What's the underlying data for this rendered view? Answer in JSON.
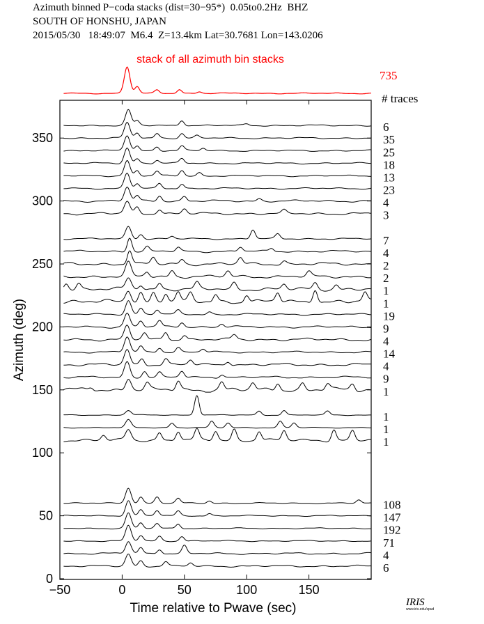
{
  "header": {
    "line1": "Azimuth binned P−coda stacks (dist=30−95*)  0.05to0.2Hz  BHZ",
    "line2": "SOUTH OF HONSHU, JAPAN",
    "line3": "2015/05/30   18:49:07  M6.4  Z=13.4km Lat=30.7681 Lon=143.0206"
  },
  "logo": {
    "text": "IRIS",
    "subtext": "www.iris.edu/spud"
  },
  "colors": {
    "stack": "#ff0000",
    "trace": "#000000"
  },
  "chart_data": {
    "type": "line",
    "stack_label": "stack of all azimuth bin stacks",
    "stack_count": "735",
    "count_header": "# traces",
    "xlabel": "Time relative to Pwave (sec)",
    "ylabel": "Azimuth (deg)",
    "xlim": [
      -50,
      200
    ],
    "ylim": [
      0,
      380
    ],
    "xticks": [
      -50,
      0,
      50,
      100,
      150
    ],
    "yticks": [
      0,
      50,
      100,
      150,
      200,
      250,
      300,
      350
    ],
    "traces": [
      {
        "azimuth": 360,
        "count": "6",
        "peaks": [
          [
            5,
            1.0
          ],
          [
            12,
            0.3
          ],
          [
            48,
            0.35
          ],
          [
            100,
            0.1
          ]
        ],
        "noise": 0.05
      },
      {
        "azimuth": 350,
        "count": "35",
        "peaks": [
          [
            4,
            1.0
          ],
          [
            12,
            0.35
          ],
          [
            28,
            0.3
          ],
          [
            48,
            0.3
          ],
          [
            60,
            0.15
          ]
        ],
        "noise": 0.05
      },
      {
        "azimuth": 340,
        "count": "25",
        "peaks": [
          [
            4,
            1.0
          ],
          [
            12,
            0.3
          ],
          [
            28,
            0.25
          ],
          [
            48,
            0.3
          ],
          [
            65,
            0.15
          ]
        ],
        "noise": 0.05
      },
      {
        "azimuth": 330,
        "count": "18",
        "peaks": [
          [
            4,
            1.0
          ],
          [
            12,
            0.3
          ],
          [
            28,
            0.2
          ],
          [
            48,
            0.3
          ]
        ],
        "noise": 0.05
      },
      {
        "azimuth": 320,
        "count": "13",
        "peaks": [
          [
            4,
            1.0
          ],
          [
            12,
            0.35
          ],
          [
            28,
            0.3
          ],
          [
            48,
            0.35
          ],
          [
            62,
            0.2
          ]
        ],
        "noise": 0.05
      },
      {
        "azimuth": 310,
        "count": "23",
        "peaks": [
          [
            4,
            1.0
          ],
          [
            12,
            0.3
          ],
          [
            30,
            0.3
          ],
          [
            48,
            0.3
          ]
        ],
        "noise": 0.05
      },
      {
        "azimuth": 300,
        "count": "4",
        "peaks": [
          [
            4,
            0.9
          ],
          [
            12,
            0.35
          ],
          [
            30,
            0.35
          ],
          [
            50,
            0.3
          ],
          [
            110,
            0.15
          ]
        ],
        "noise": 0.07
      },
      {
        "azimuth": 290,
        "count": "3",
        "peaks": [
          [
            4,
            0.8
          ],
          [
            12,
            0.4
          ],
          [
            30,
            0.3
          ],
          [
            50,
            0.3
          ],
          [
            130,
            0.2
          ]
        ],
        "noise": 0.08
      },
      {
        "azimuth": 270,
        "count": "7",
        "peaks": [
          [
            5,
            0.8
          ],
          [
            15,
            0.3
          ],
          [
            40,
            0.15
          ],
          [
            105,
            0.6
          ],
          [
            125,
            0.3
          ]
        ],
        "noise": 0.05
      },
      {
        "azimuth": 260,
        "count": "4",
        "peaks": [
          [
            6,
            0.9
          ],
          [
            20,
            0.3
          ],
          [
            45,
            0.25
          ],
          [
            95,
            0.3
          ],
          [
            120,
            0.2
          ]
        ],
        "noise": 0.07
      },
      {
        "azimuth": 250,
        "count": "2",
        "peaks": [
          [
            6,
            0.9
          ],
          [
            25,
            0.4
          ],
          [
            48,
            0.3
          ],
          [
            95,
            0.4
          ],
          [
            130,
            0.2
          ]
        ],
        "noise": 0.1
      },
      {
        "azimuth": 240,
        "count": "2",
        "peaks": [
          [
            5,
            0.9
          ],
          [
            20,
            0.3
          ],
          [
            40,
            0.4
          ],
          [
            85,
            0.35
          ],
          [
            150,
            0.3
          ]
        ],
        "noise": 0.1
      },
      {
        "azimuth": 230,
        "count": "1",
        "peaks": [
          [
            -45,
            0.4
          ],
          [
            -35,
            0.4
          ],
          [
            5,
            0.7
          ],
          [
            15,
            0.3
          ],
          [
            30,
            0.4
          ],
          [
            60,
            0.4
          ],
          [
            90,
            0.4
          ],
          [
            130,
            0.3
          ],
          [
            155,
            0.4
          ],
          [
            172,
            0.3
          ]
        ],
        "noise": 0.12
      },
      {
        "azimuth": 220,
        "count": "1",
        "peaks": [
          [
            5,
            0.8
          ],
          [
            15,
            0.6
          ],
          [
            25,
            0.6
          ],
          [
            35,
            0.6
          ],
          [
            45,
            0.6
          ],
          [
            55,
            0.5
          ],
          [
            75,
            0.5
          ],
          [
            100,
            0.5
          ],
          [
            125,
            0.6
          ],
          [
            155,
            0.9
          ],
          [
            195,
            0.6
          ]
        ],
        "noise": 0.15
      },
      {
        "azimuth": 210,
        "count": "19",
        "peaks": [
          [
            5,
            0.9
          ],
          [
            15,
            0.4
          ],
          [
            28,
            0.3
          ],
          [
            45,
            0.25
          ],
          [
            70,
            0.15
          ]
        ],
        "noise": 0.06
      },
      {
        "azimuth": 200,
        "count": "9",
        "peaks": [
          [
            4,
            0.9
          ],
          [
            15,
            0.4
          ],
          [
            30,
            0.4
          ],
          [
            48,
            0.3
          ],
          [
            80,
            0.2
          ]
        ],
        "noise": 0.07
      },
      {
        "azimuth": 190,
        "count": "4",
        "peaks": [
          [
            4,
            0.9
          ],
          [
            18,
            0.4
          ],
          [
            35,
            0.5
          ],
          [
            50,
            0.3
          ],
          [
            90,
            0.3
          ]
        ],
        "noise": 0.09
      },
      {
        "azimuth": 180,
        "count": "14",
        "peaks": [
          [
            4,
            1.0
          ],
          [
            15,
            0.4
          ],
          [
            30,
            0.3
          ],
          [
            45,
            0.3
          ],
          [
            65,
            0.2
          ]
        ],
        "noise": 0.06
      },
      {
        "azimuth": 170,
        "count": "4",
        "peaks": [
          [
            4,
            1.0
          ],
          [
            16,
            0.4
          ],
          [
            35,
            0.4
          ],
          [
            55,
            0.3
          ],
          [
            85,
            0.25
          ]
        ],
        "noise": 0.09
      },
      {
        "azimuth": 160,
        "count": "9",
        "peaks": [
          [
            4,
            1.0
          ],
          [
            18,
            0.4
          ],
          [
            30,
            0.3
          ],
          [
            48,
            0.4
          ],
          [
            80,
            0.2
          ]
        ],
        "noise": 0.07
      },
      {
        "azimuth": 150,
        "count": "1",
        "peaks": [
          [
            -25,
            0.2
          ],
          [
            5,
            0.8
          ],
          [
            20,
            0.4
          ],
          [
            45,
            0.6
          ],
          [
            80,
            0.5
          ],
          [
            105,
            0.4
          ],
          [
            125,
            0.5
          ],
          [
            145,
            0.4
          ],
          [
            165,
            0.4
          ],
          [
            185,
            0.4
          ]
        ],
        "noise": 0.15
      },
      {
        "azimuth": 130,
        "count": "1",
        "peaks": [
          [
            5,
            0.3
          ],
          [
            60,
            1.3
          ],
          [
            110,
            0.25
          ],
          [
            130,
            0.3
          ],
          [
            165,
            0.25
          ]
        ],
        "noise": 0.03
      },
      {
        "azimuth": 120,
        "count": "1",
        "peaks": [
          [
            5,
            0.5
          ],
          [
            40,
            0.3
          ],
          [
            72,
            0.4
          ],
          [
            85,
            0.3
          ],
          [
            127,
            0.4
          ],
          [
            138,
            0.3
          ]
        ],
        "noise": 0.03
      },
      {
        "azimuth": 110,
        "count": "1",
        "peaks": [
          [
            -15,
            0.3
          ],
          [
            5,
            0.7
          ],
          [
            30,
            0.5
          ],
          [
            45,
            0.6
          ],
          [
            60,
            0.7
          ],
          [
            75,
            0.6
          ],
          [
            90,
            0.7
          ],
          [
            110,
            0.6
          ],
          [
            130,
            0.6
          ],
          [
            170,
            0.7
          ],
          [
            185,
            0.6
          ]
        ],
        "noise": 0.1
      },
      {
        "azimuth": 60,
        "count": "108",
        "peaks": [
          [
            5,
            1.0
          ],
          [
            15,
            0.4
          ],
          [
            28,
            0.4
          ],
          [
            45,
            0.3
          ],
          [
            70,
            0.15
          ],
          [
            190,
            0.2
          ]
        ],
        "noise": 0.04
      },
      {
        "azimuth": 50,
        "count": "147",
        "peaks": [
          [
            5,
            1.0
          ],
          [
            15,
            0.4
          ],
          [
            28,
            0.35
          ],
          [
            45,
            0.3
          ],
          [
            70,
            0.15
          ]
        ],
        "noise": 0.04
      },
      {
        "azimuth": 40,
        "count": "192",
        "peaks": [
          [
            5,
            1.0
          ],
          [
            15,
            0.35
          ],
          [
            28,
            0.3
          ],
          [
            45,
            0.3
          ]
        ],
        "noise": 0.04
      },
      {
        "azimuth": 30,
        "count": "71",
        "peaks": [
          [
            5,
            1.0
          ],
          [
            15,
            0.35
          ],
          [
            30,
            0.3
          ],
          [
            48,
            0.3
          ]
        ],
        "noise": 0.04
      },
      {
        "azimuth": 20,
        "count": "4",
        "peaks": [
          [
            5,
            0.8
          ],
          [
            15,
            0.4
          ],
          [
            30,
            0.3
          ],
          [
            50,
            0.5
          ]
        ],
        "noise": 0.06
      },
      {
        "azimuth": 10,
        "count": "6",
        "peaks": [
          [
            5,
            0.8
          ],
          [
            15,
            0.35
          ],
          [
            35,
            0.3
          ],
          [
            55,
            0.2
          ]
        ],
        "noise": 0.06
      }
    ],
    "stack_peaks": [
      [
        4,
        1.0
      ],
      [
        12,
        0.25
      ],
      [
        28,
        0.12
      ],
      [
        46,
        0.15
      ],
      [
        62,
        0.06
      ]
    ]
  }
}
